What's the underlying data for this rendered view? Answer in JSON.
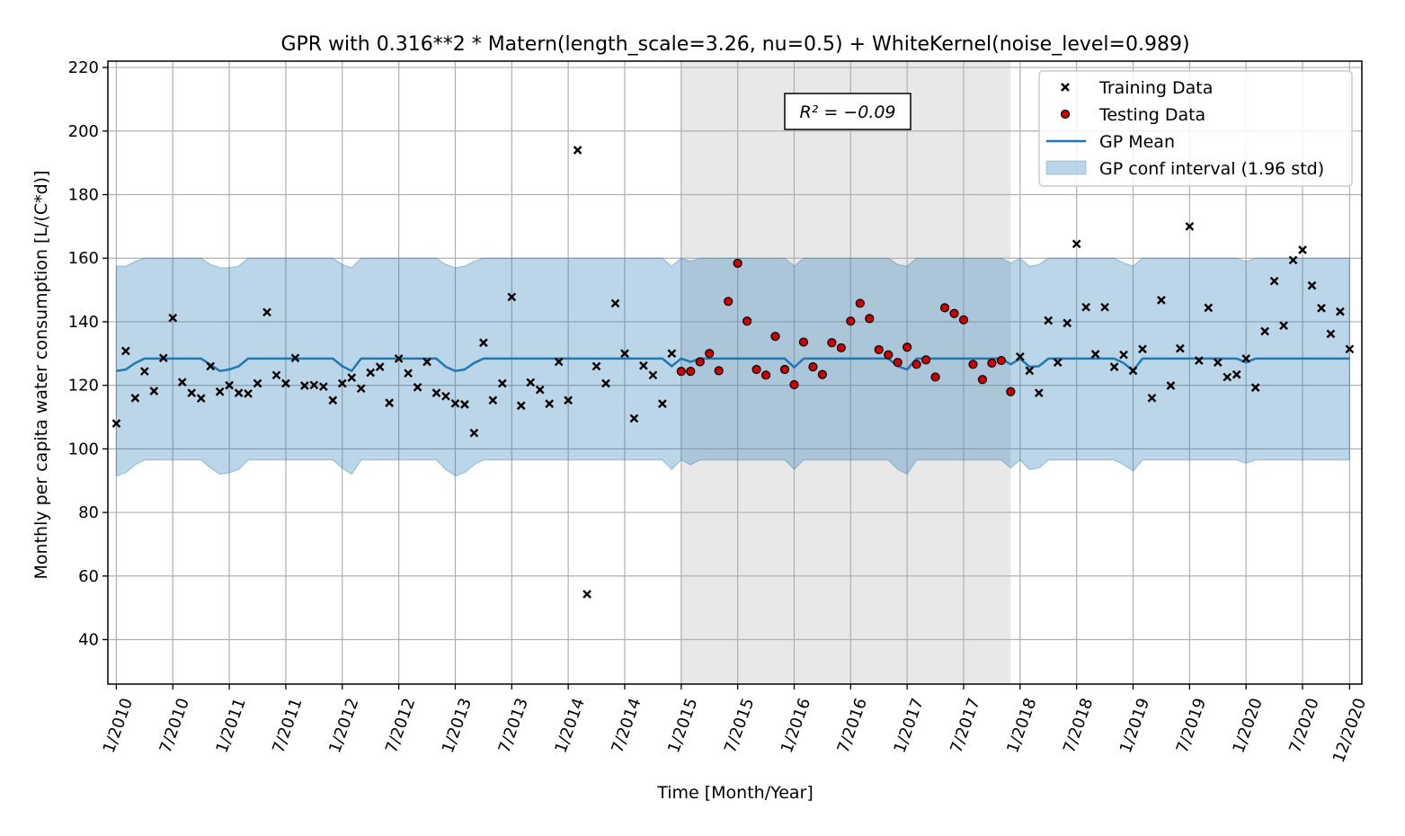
{
  "chart_data": {
    "type": "scatter",
    "title": "GPR with 0.316**2 * Matern(length_scale=3.26, nu=0.5) + WhiteKernel(noise_level=0.989)",
    "xlabel": "Time [Month/Year]",
    "ylabel": "Monthly per capita water consumption [L/(C*d)]",
    "ylim": [
      26,
      222
    ],
    "xlim": [
      -0.9,
      132.3
    ],
    "grid": true,
    "legend_position": "top-right",
    "annotation": "R² = −0.09",
    "x_ticks": [
      {
        "month": 0,
        "label": "1/2010"
      },
      {
        "month": 6,
        "label": "7/2010"
      },
      {
        "month": 12,
        "label": "1/2011"
      },
      {
        "month": 18,
        "label": "7/2011"
      },
      {
        "month": 24,
        "label": "1/2012"
      },
      {
        "month": 30,
        "label": "7/2012"
      },
      {
        "month": 36,
        "label": "1/2013"
      },
      {
        "month": 42,
        "label": "7/2013"
      },
      {
        "month": 48,
        "label": "1/2014"
      },
      {
        "month": 54,
        "label": "7/2014"
      },
      {
        "month": 60,
        "label": "1/2015"
      },
      {
        "month": 66,
        "label": "7/2015"
      },
      {
        "month": 72,
        "label": "1/2016"
      },
      {
        "month": 78,
        "label": "7/2016"
      },
      {
        "month": 84,
        "label": "1/2017"
      },
      {
        "month": 90,
        "label": "7/2017"
      },
      {
        "month": 96,
        "label": "1/2018"
      },
      {
        "month": 102,
        "label": "7/2018"
      },
      {
        "month": 108,
        "label": "1/2019"
      },
      {
        "month": 114,
        "label": "7/2019"
      },
      {
        "month": 120,
        "label": "1/2020"
      },
      {
        "month": 126,
        "label": "7/2020"
      },
      {
        "month": 131,
        "label": "12/2020"
      }
    ],
    "y_ticks": [
      40,
      60,
      80,
      100,
      120,
      140,
      160,
      180,
      200,
      220
    ],
    "test_region": {
      "x_start": 60,
      "x_end": 95,
      "color": "#e8e8e8"
    },
    "series": [
      {
        "name": "Training Data",
        "marker": "x",
        "color": "#000000",
        "x": [
          0,
          1,
          2,
          3,
          4,
          5,
          6,
          7,
          8,
          9,
          10,
          11,
          12,
          13,
          14,
          15,
          16,
          17,
          18,
          19,
          20,
          21,
          22,
          23,
          24,
          25,
          26,
          27,
          28,
          29,
          30,
          31,
          32,
          33,
          34,
          35,
          36,
          37,
          38,
          39,
          40,
          41,
          42,
          43,
          44,
          45,
          46,
          47,
          48,
          49,
          50,
          51,
          52,
          53,
          54,
          55,
          56,
          57,
          58,
          59,
          96,
          97,
          98,
          99,
          100,
          101,
          102,
          103,
          104,
          105,
          106,
          107,
          108,
          109,
          110,
          111,
          112,
          113,
          114,
          115,
          116,
          117,
          118,
          119,
          120,
          121,
          122,
          123,
          124,
          125,
          126,
          127,
          128,
          129,
          130,
          131
        ],
        "y": [
          108,
          130.8,
          116,
          124.4,
          118.2,
          128.6,
          141.2,
          121,
          117.6,
          115.9,
          126,
          118,
          120,
          117.6,
          117.4,
          120.6,
          143,
          123.2,
          120.6,
          128.6,
          119.9,
          120.1,
          119.6,
          115.3,
          120.6,
          122.4,
          119,
          124,
          125.8,
          114.5,
          128.4,
          123.8,
          119.4,
          127.4,
          117.6,
          116.6,
          114.3,
          114,
          105,
          133.4,
          115.3,
          120.6,
          147.8,
          113.6,
          120.9,
          118.6,
          114.2,
          127.4,
          115.3,
          194,
          54.3,
          126,
          120.6,
          145.8,
          130,
          109.6,
          126.2,
          123.2,
          114.2,
          130,
          129,
          124.6,
          117.6,
          140.4,
          127.2,
          139.6,
          164.5,
          144.6,
          129.8,
          144.6,
          125.8,
          129.6,
          124.6,
          131.4,
          116,
          146.8,
          119.9,
          131.6,
          170,
          127.8,
          144.4,
          127.2,
          122.6,
          123.4,
          128.4,
          119.3,
          137,
          152.8,
          138.8,
          159.4,
          162.6,
          151.4,
          144.3,
          136.2,
          143.2,
          131.4
        ]
      },
      {
        "name": "Testing Data",
        "marker": "circle",
        "color": "#cc0000",
        "x": [
          60,
          61,
          62,
          63,
          64,
          65,
          66,
          67,
          68,
          69,
          70,
          71,
          72,
          73,
          74,
          75,
          76,
          77,
          78,
          79,
          80,
          81,
          82,
          83,
          84,
          85,
          86,
          87,
          88,
          89,
          90,
          91,
          92,
          93,
          94,
          95
        ],
        "y": [
          124.4,
          124.4,
          127.4,
          130,
          124.6,
          146.4,
          158.4,
          140.2,
          125,
          123.2,
          135.4,
          125,
          120.2,
          133.6,
          125.8,
          123.4,
          133.4,
          131.8,
          140.2,
          145.8,
          141,
          131.2,
          129.6,
          127.2,
          132,
          126.6,
          128,
          122.6,
          144.4,
          142.6,
          140.6,
          126.6,
          121.8,
          127,
          127.8,
          118
        ]
      },
      {
        "name": "GP Mean",
        "type": "line",
        "color": "#1f77b4",
        "x": [
          0,
          1,
          2,
          3,
          4,
          5,
          6,
          7,
          8,
          9,
          10,
          11,
          12,
          13,
          14,
          15,
          16,
          17,
          18,
          19,
          20,
          21,
          22,
          23,
          24,
          25,
          26,
          27,
          28,
          29,
          30,
          31,
          32,
          33,
          34,
          35,
          36,
          37,
          38,
          39,
          40,
          41,
          42,
          43,
          44,
          45,
          46,
          47,
          48,
          49,
          50,
          51,
          52,
          53,
          54,
          55,
          56,
          57,
          58,
          59,
          60,
          61,
          62,
          63,
          64,
          65,
          66,
          67,
          68,
          69,
          70,
          71,
          72,
          73,
          74,
          75,
          76,
          77,
          78,
          79,
          80,
          81,
          82,
          83,
          84,
          85,
          86,
          87,
          88,
          89,
          90,
          91,
          92,
          93,
          94,
          95,
          96,
          97,
          98,
          99,
          100,
          101,
          102,
          103,
          104,
          105,
          106,
          107,
          108,
          109,
          110,
          111,
          112,
          113,
          114,
          115,
          116,
          117,
          118,
          119,
          120,
          121,
          122,
          123,
          124,
          125,
          126,
          127,
          128,
          129,
          130,
          131
        ],
        "y": [
          124.5,
          125,
          127,
          128.4,
          128.4,
          128.4,
          128.4,
          128.4,
          128.4,
          128.4,
          126.5,
          124.5,
          125,
          126,
          128.4,
          128.4,
          128.4,
          128.4,
          128.4,
          128.4,
          128.4,
          128.4,
          128.4,
          128.4,
          126,
          124.5,
          128.4,
          128.4,
          128.4,
          128.4,
          128.4,
          128.4,
          128.4,
          128.4,
          128.4,
          125.8,
          124.5,
          125,
          127,
          128.4,
          128.4,
          128.4,
          128.4,
          128.4,
          128.4,
          128.4,
          128.4,
          128.4,
          128.4,
          128.4,
          128.4,
          128.4,
          128.4,
          128.4,
          128.4,
          128.4,
          128.4,
          128.4,
          128.4,
          126,
          128.4,
          127.4,
          128.4,
          128.4,
          128.4,
          128.4,
          128.4,
          128.4,
          128.4,
          128.4,
          128.4,
          128.4,
          125.6,
          128.4,
          128.4,
          128.4,
          128.4,
          128.4,
          128.4,
          128.4,
          128.4,
          128.4,
          128.4,
          126,
          125,
          128.4,
          128.4,
          128.4,
          128.4,
          128.4,
          128.4,
          128.4,
          128.4,
          128.4,
          128.4,
          126.6,
          128.4,
          125.8,
          126,
          128.4,
          128.4,
          128.4,
          128.4,
          128.4,
          128.4,
          128.4,
          128.4,
          127,
          124.6,
          128.4,
          128.4,
          128.4,
          128.4,
          128.4,
          128.4,
          128.4,
          128.4,
          128.4,
          128.4,
          128.4,
          127.2,
          128.4,
          128.4,
          128.4,
          128.4,
          128.4,
          128.4,
          128.4,
          128.4,
          128.4,
          128.4,
          128.4
        ]
      },
      {
        "name": "GP conf interval (1.96 std)",
        "type": "area",
        "color": "#1f77b4",
        "opacity": 0.3,
        "x": [
          0,
          1,
          2,
          3,
          4,
          5,
          6,
          7,
          8,
          9,
          10,
          11,
          12,
          13,
          14,
          15,
          16,
          17,
          18,
          19,
          20,
          21,
          22,
          23,
          24,
          25,
          26,
          27,
          28,
          29,
          30,
          31,
          32,
          33,
          34,
          35,
          36,
          37,
          38,
          39,
          40,
          41,
          42,
          43,
          44,
          45,
          46,
          47,
          48,
          49,
          50,
          51,
          52,
          53,
          54,
          55,
          56,
          57,
          58,
          59,
          60,
          61,
          62,
          63,
          64,
          65,
          66,
          67,
          68,
          69,
          70,
          71,
          72,
          73,
          74,
          75,
          76,
          77,
          78,
          79,
          80,
          81,
          82,
          83,
          84,
          85,
          86,
          87,
          88,
          89,
          90,
          91,
          92,
          93,
          94,
          95,
          96,
          97,
          98,
          99,
          100,
          101,
          102,
          103,
          104,
          105,
          106,
          107,
          108,
          109,
          110,
          111,
          112,
          113,
          114,
          115,
          116,
          117,
          118,
          119,
          120,
          121,
          122,
          123,
          124,
          125,
          126,
          127,
          128,
          129,
          130,
          131
        ],
        "lower": [
          91.5,
          92.5,
          95,
          96.5,
          96.5,
          96.5,
          96.5,
          96.5,
          96.5,
          96.5,
          94,
          92,
          92.5,
          93.5,
          96.5,
          96.5,
          96.5,
          96.5,
          96.5,
          96.5,
          96.5,
          96.5,
          96.5,
          96.5,
          94,
          92,
          96.5,
          96.5,
          96.5,
          96.5,
          96.5,
          96.5,
          96.5,
          96.5,
          96.5,
          93.5,
          91.5,
          92.5,
          95,
          96.5,
          96.5,
          96.5,
          96.5,
          96.5,
          96.5,
          96.5,
          96.5,
          96.5,
          96.5,
          96.5,
          96.5,
          96.5,
          96.5,
          96.5,
          96.5,
          96.5,
          96.5,
          96.5,
          96.5,
          93.5,
          96.5,
          95,
          96.5,
          96.5,
          96.5,
          96.5,
          96.5,
          96.5,
          96.5,
          96.5,
          96.5,
          96.5,
          93.5,
          96.5,
          96.5,
          96.5,
          96.5,
          96.5,
          96.5,
          96.5,
          96.5,
          96.5,
          96.5,
          93.5,
          92,
          96.5,
          96.5,
          96.5,
          96.5,
          96.5,
          96.5,
          96.5,
          96.5,
          96.5,
          96.5,
          94,
          96.5,
          93.5,
          94,
          96.5,
          96.5,
          96.5,
          96.5,
          96.5,
          96.5,
          96.5,
          96.5,
          95,
          93,
          96.5,
          96.5,
          96.5,
          96.5,
          96.5,
          96.5,
          96.5,
          96.5,
          96.5,
          96.5,
          96.5,
          95.5,
          96.5,
          96.5,
          96.5,
          96.5,
          96.5,
          96.5,
          96.5,
          96.5,
          96.5,
          96.5,
          96.5
        ],
        "upper": [
          157.5,
          157.5,
          159,
          160,
          160,
          160,
          160,
          160,
          160,
          160,
          158,
          157,
          157,
          157.5,
          160,
          160,
          160,
          160,
          160,
          160,
          160,
          160,
          160,
          160,
          158,
          157,
          160,
          160,
          160,
          160,
          160,
          160,
          160,
          160,
          160,
          158,
          157,
          157.5,
          159,
          160,
          160,
          160,
          160,
          160,
          160,
          160,
          160,
          160,
          160,
          160,
          160,
          160,
          160,
          160,
          160,
          160,
          160,
          160,
          160,
          157.5,
          160,
          159,
          160,
          160,
          160,
          160,
          160,
          160,
          160,
          160,
          160,
          160,
          157.5,
          160,
          160,
          160,
          160,
          160,
          160,
          160,
          160,
          160,
          160,
          158,
          157.5,
          160,
          160,
          160,
          160,
          160,
          160,
          160,
          160,
          160,
          160,
          158.5,
          160,
          157.5,
          158,
          160,
          160,
          160,
          160,
          160,
          160,
          160,
          160,
          158.5,
          157.5,
          160,
          160,
          160,
          160,
          160,
          160,
          160,
          160,
          160,
          160,
          160,
          159,
          160,
          160,
          160,
          160,
          160,
          160,
          160,
          160,
          160,
          160,
          160
        ]
      }
    ]
  }
}
